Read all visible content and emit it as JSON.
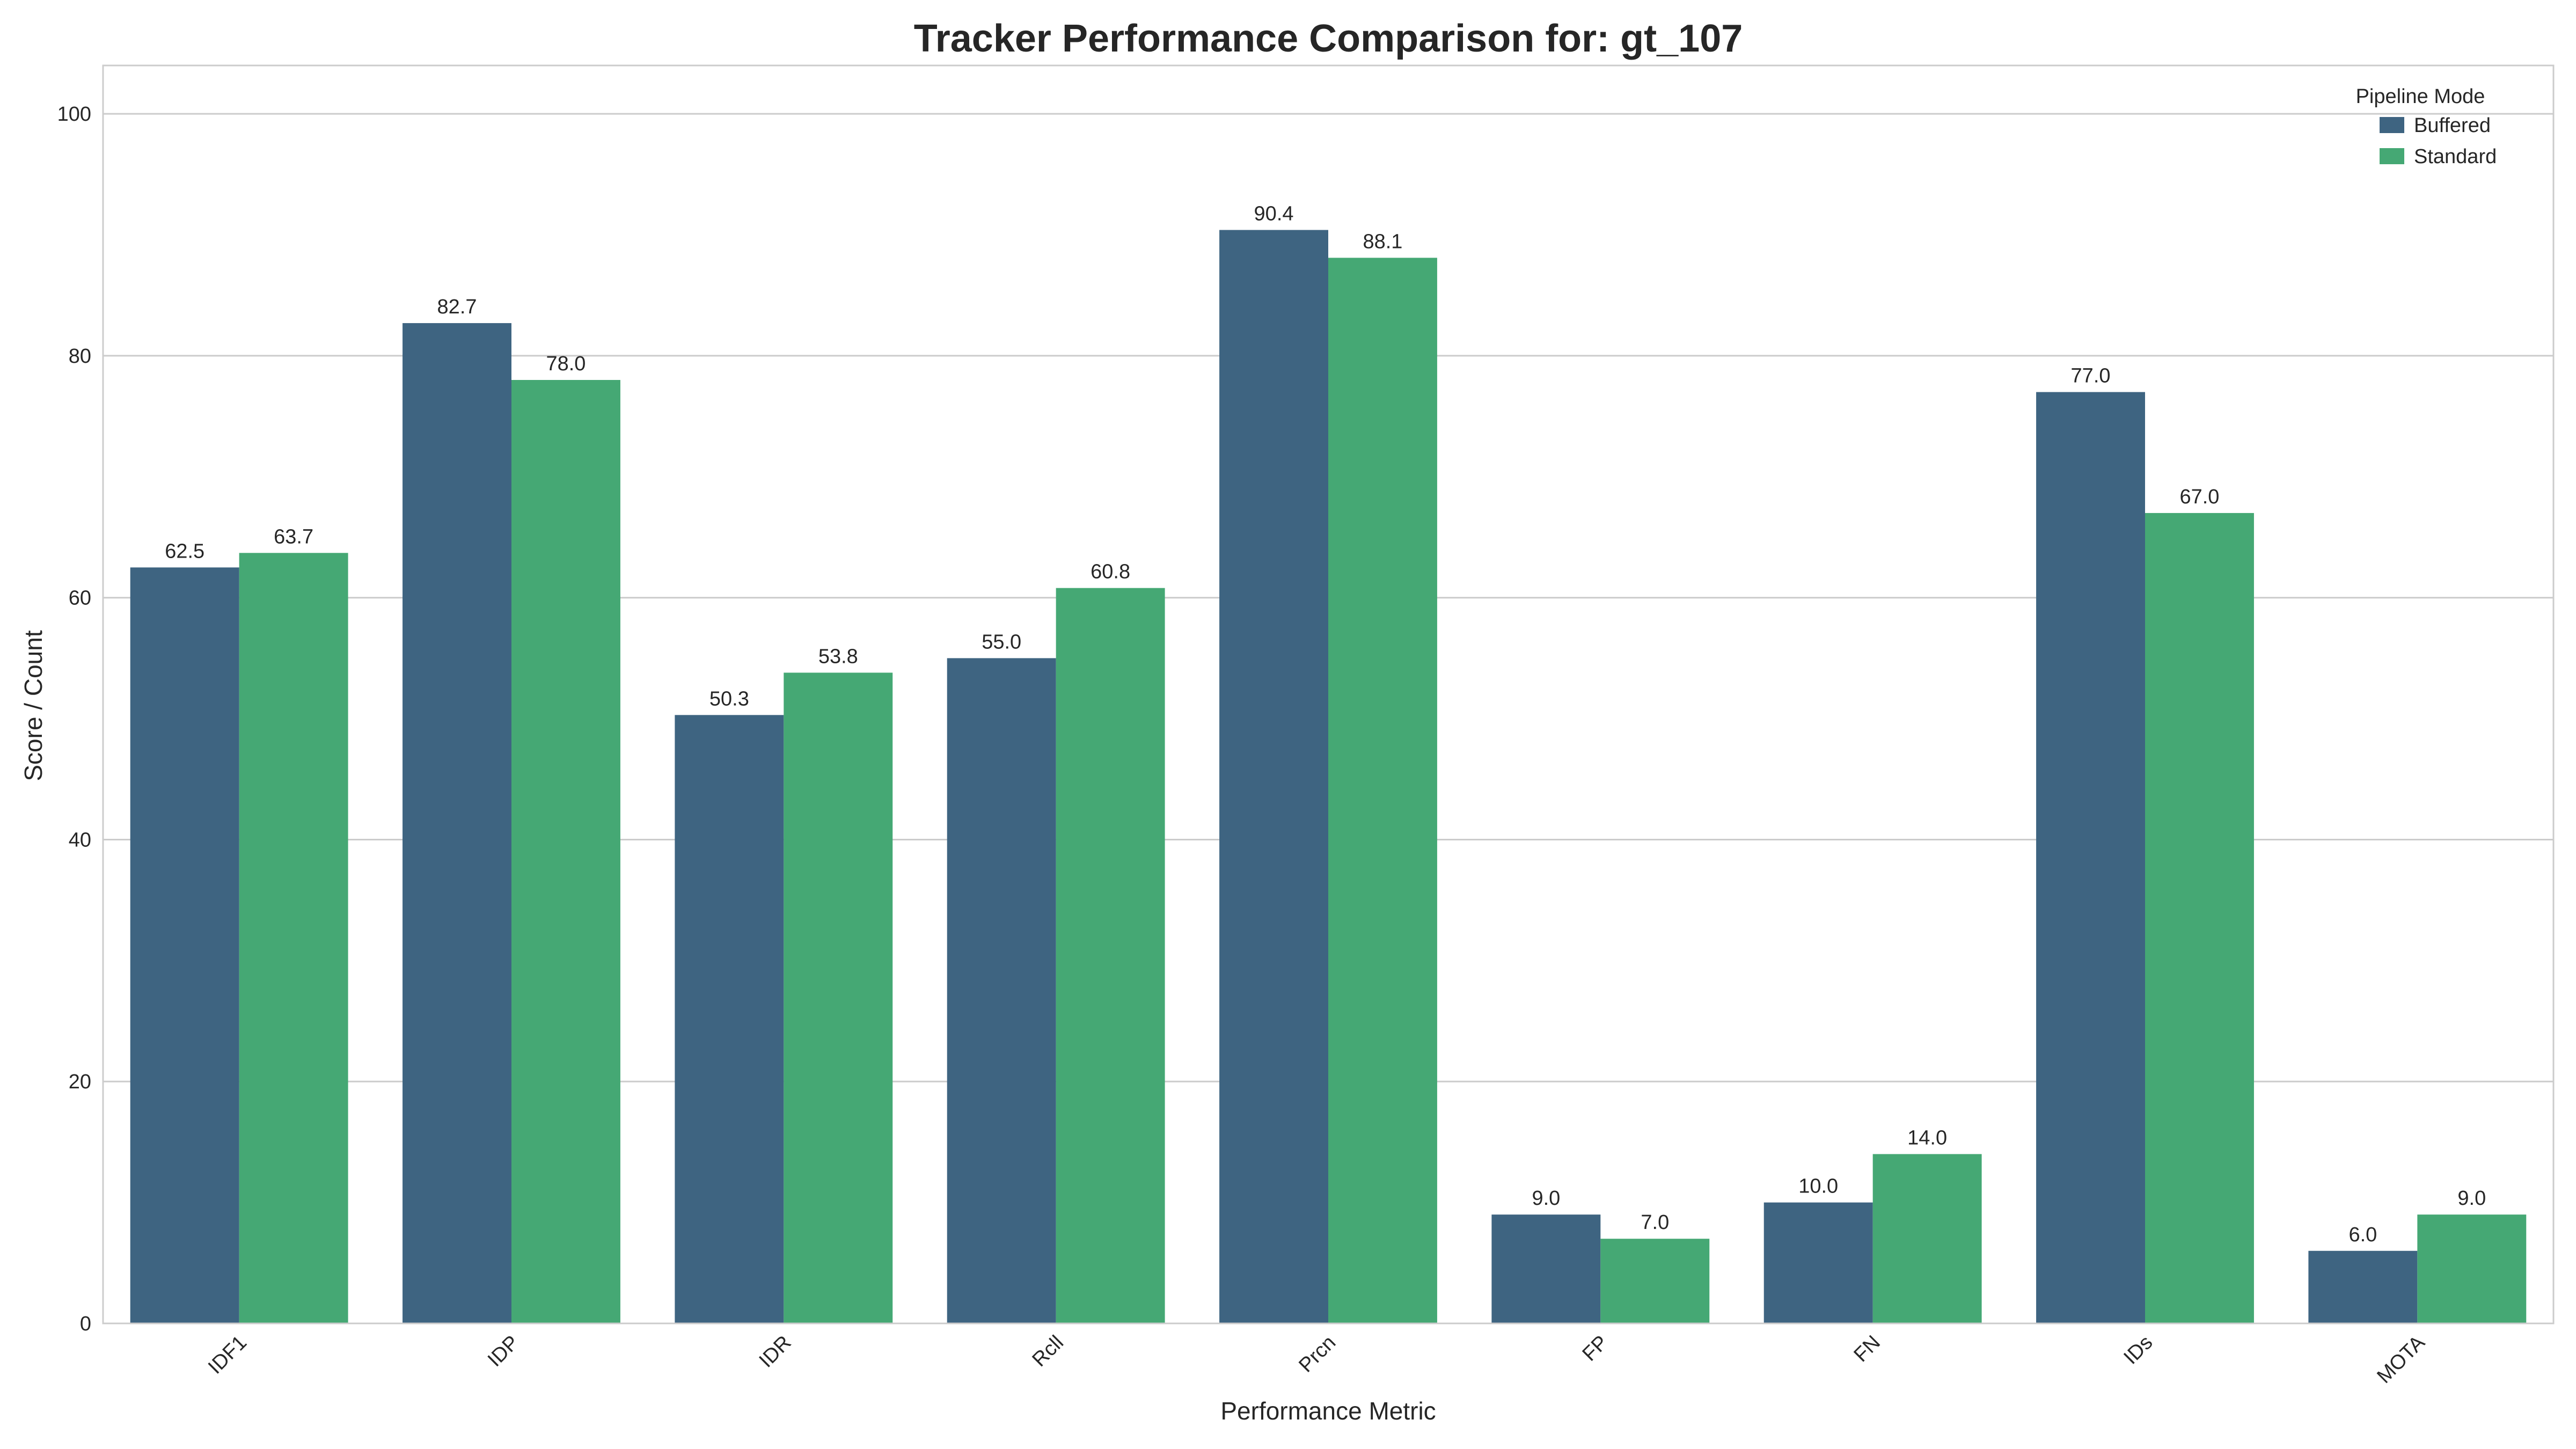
{
  "chart_data": {
    "type": "bar",
    "title": "Tracker Performance Comparison for: gt_107",
    "xlabel": "Performance Metric",
    "ylabel": "Score / Count",
    "categories": [
      "IDF1",
      "IDP",
      "IDR",
      "Rcll",
      "Prcn",
      "FP",
      "FN",
      "IDs",
      "MOTA"
    ],
    "series": [
      {
        "name": "Buffered",
        "color": "#3e6481",
        "values": [
          62.5,
          82.7,
          50.3,
          55.0,
          90.4,
          9.0,
          10.0,
          77.0,
          6.0
        ],
        "labels": [
          "62.5",
          "82.7",
          "50.3",
          "55.0",
          "90.4",
          "9.0",
          "10.0",
          "77.0",
          "6.0"
        ]
      },
      {
        "name": "Standard",
        "color": "#45a874",
        "values": [
          63.7,
          78.0,
          53.8,
          60.8,
          88.1,
          7.0,
          14.0,
          67.0,
          9.0
        ],
        "labels": [
          "63.7",
          "78.0",
          "53.8",
          "60.8",
          "88.1",
          "7.0",
          "14.0",
          "67.0",
          "9.0"
        ]
      }
    ],
    "ylim": [
      0,
      104
    ],
    "yticks": [
      0,
      20,
      40,
      60,
      80,
      100
    ],
    "ytick_labels": [
      "0",
      "20",
      "40",
      "60",
      "80",
      "100"
    ],
    "grid": "horizontal",
    "legend": {
      "title": "Pipeline Mode",
      "placement": "top-right"
    }
  }
}
